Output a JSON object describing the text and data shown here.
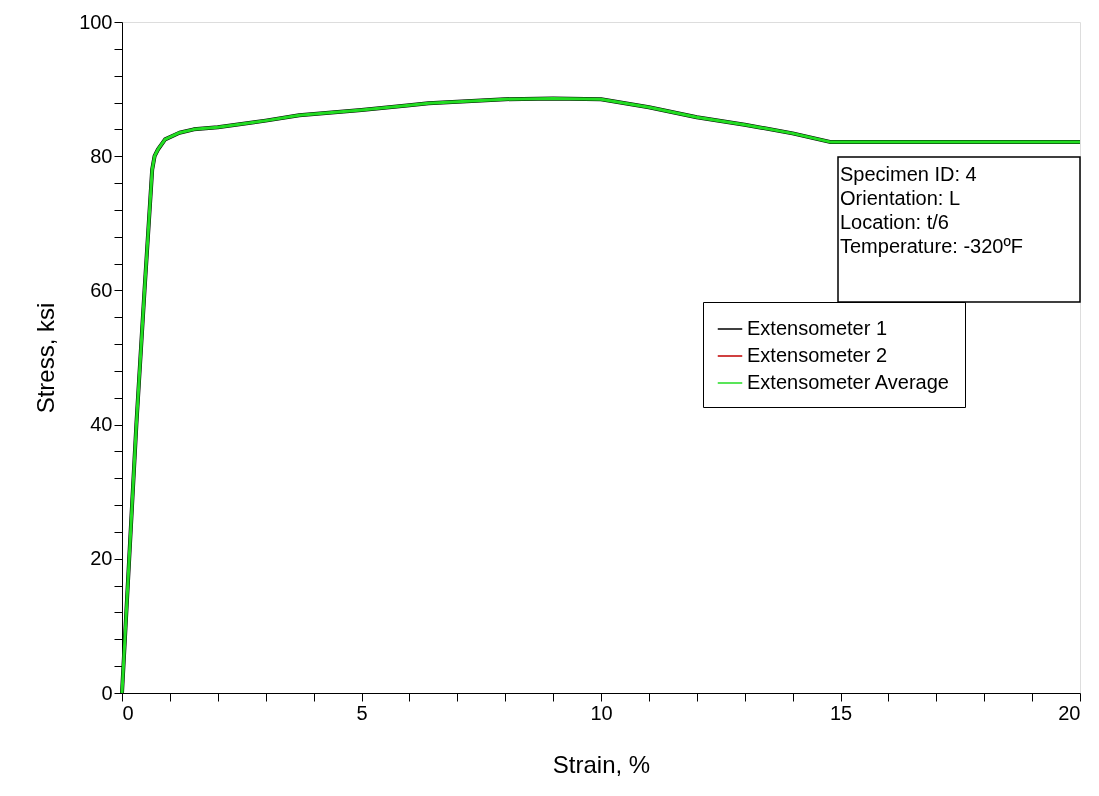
{
  "chart_data": {
    "type": "line",
    "xlabel": "Strain, %",
    "ylabel": "Stress, ksi",
    "x": [
      0,
      0.15,
      0.3,
      0.47,
      0.63,
      0.68,
      0.75,
      0.9,
      1.2,
      1.5,
      2,
      3,
      3.7,
      5,
      6,
      6.4,
      7,
      8,
      9,
      10,
      11,
      12,
      13,
      14,
      14.8,
      15,
      20
    ],
    "series": [
      {
        "name": "Extensometer 1",
        "color": "#000000",
        "values": [
          0,
          20,
          40,
          60,
          78,
          80,
          81,
          82.5,
          83.5,
          84,
          84.3,
          85.3,
          86.1,
          86.9,
          87.6,
          87.9,
          88.1,
          88.5,
          88.6,
          88.5,
          87.3,
          85.8,
          84.7,
          83.4,
          82.1,
          82.1,
          82.1
        ]
      },
      {
        "name": "Extensometer 2",
        "color": "#c00000",
        "values": [
          null,
          null,
          null,
          null,
          null,
          null,
          null,
          null,
          null,
          null,
          null,
          null,
          null,
          null,
          null,
          null,
          null,
          null,
          null,
          null,
          null,
          null,
          null,
          null,
          null,
          null,
          null
        ]
      },
      {
        "name": "Extensometer Average",
        "color": "#22dd22",
        "values": [
          0,
          20,
          40,
          60,
          78,
          80,
          81,
          82.5,
          83.5,
          84,
          84.3,
          85.3,
          86.1,
          86.9,
          87.6,
          87.9,
          88.1,
          88.5,
          88.6,
          88.5,
          87.3,
          85.8,
          84.7,
          83.4,
          82.1,
          82.1,
          82.1
        ]
      }
    ],
    "xlim": [
      0,
      20
    ],
    "xticks": [
      0,
      {
        "value": 1,
        "label": null
      },
      {
        "value": 2,
        "label": null
      },
      {
        "value": 3,
        "label": null
      },
      {
        "value": 4,
        "label": null
      },
      5,
      {
        "value": 6,
        "label": null
      },
      {
        "value": 7,
        "label": null
      },
      {
        "value": 8,
        "label": null
      },
      {
        "value": 9,
        "label": null
      },
      10,
      {
        "value": 11,
        "label": null
      },
      {
        "value": 12,
        "label": null
      },
      {
        "value": 13,
        "label": null
      },
      {
        "value": 14,
        "label": null
      },
      15,
      {
        "value": 16,
        "label": null
      },
      {
        "value": 17,
        "label": null
      },
      {
        "value": 18,
        "label": null
      },
      {
        "value": 19,
        "label": null
      },
      20
    ],
    "ylim": [
      0,
      100
    ],
    "yticks": [
      0,
      {
        "value": 4,
        "label": null
      },
      {
        "value": 8,
        "label": null
      },
      {
        "value": 12,
        "label": null
      },
      {
        "value": 16,
        "label": null
      },
      20,
      {
        "value": 24,
        "label": null
      },
      {
        "value": 28,
        "label": null
      },
      {
        "value": 32,
        "label": null
      },
      {
        "value": 36,
        "label": null
      },
      40,
      {
        "value": 44,
        "label": null
      },
      {
        "value": 48,
        "label": null
      },
      {
        "value": 52,
        "label": null
      },
      {
        "value": 56,
        "label": null
      },
      60,
      {
        "value": 64,
        "label": null
      },
      {
        "value": 68,
        "label": null
      },
      {
        "value": 72,
        "label": null
      },
      {
        "value": 76,
        "label": null
      },
      80,
      {
        "value": 84,
        "label": null
      },
      {
        "value": 88,
        "label": null
      },
      {
        "value": 92,
        "label": null
      },
      {
        "value": 96,
        "label": null
      },
      100
    ],
    "annotations": [
      "Specimen ID: 4",
      "Orientation: L",
      "Location: t/6",
      "Temperature: -320ºF"
    ],
    "legend": "right",
    "grid": false,
    "marker": "none",
    "line_style": "solid"
  }
}
